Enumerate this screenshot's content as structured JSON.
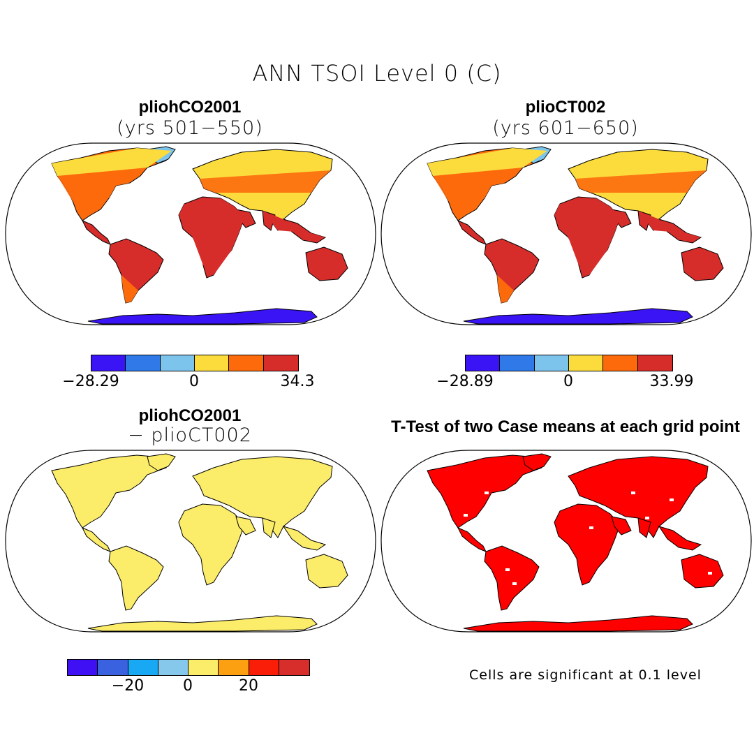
{
  "title": "ANN TSOI Level 0 (C)",
  "panels": [
    {
      "id": "p1",
      "title": "pliohCO2001",
      "subtitle": "(yrs 501−550)",
      "theme": "abs"
    },
    {
      "id": "p2",
      "title": "plioCT002",
      "subtitle": "(yrs 601−650)",
      "theme": "abs"
    },
    {
      "id": "p3",
      "title": "pliohCO2001",
      "subtitle": "− plioCT002",
      "theme": "diff"
    },
    {
      "id": "p4",
      "title": "T-Test of two Case means at each grid point",
      "subtitle": "",
      "theme": "ttest"
    }
  ],
  "colorbars": {
    "cb1": {
      "colors": [
        "#3a14f5",
        "#2f7ae8",
        "#7cc4ec",
        "#fbdc3c",
        "#fc6a0c",
        "#d62c2a"
      ],
      "ticks": [
        "−28.29",
        "0",
        "34.3"
      ]
    },
    "cb2": {
      "colors": [
        "#3a14f5",
        "#2f7ae8",
        "#7cc4ec",
        "#fbdc3c",
        "#fc6a0c",
        "#d62c2a"
      ],
      "ticks": [
        "−28.89",
        "0",
        "33.99"
      ]
    },
    "cb3": {
      "colors": [
        "#4010f5",
        "#3a62e0",
        "#18a8f4",
        "#86c8ec",
        "#fbec6a",
        "#fca012",
        "#fa1e08",
        "#d72e2c"
      ],
      "ticks": [
        "−20",
        "0",
        "20"
      ]
    }
  },
  "footnote": "Cells are significant at 0.1 level"
}
